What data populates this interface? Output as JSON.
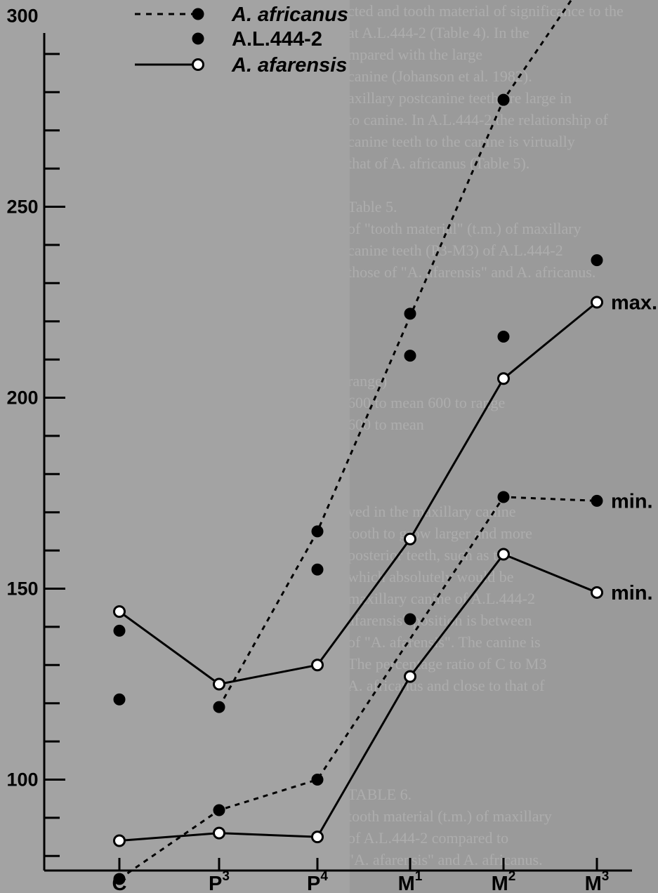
{
  "chart_data": {
    "type": "line",
    "categories": [
      "C",
      "P3",
      "P4",
      "M1",
      "M2",
      "M3"
    ],
    "category_labels": [
      {
        "base": "C",
        "sup": ""
      },
      {
        "base": "P",
        "sup": "3"
      },
      {
        "base": "P",
        "sup": "4"
      },
      {
        "base": "M",
        "sup": "1"
      },
      {
        "base": "M",
        "sup": "2"
      },
      {
        "base": "M",
        "sup": "3"
      }
    ],
    "y_ticks": [
      100,
      150,
      200,
      250,
      300
    ],
    "ylim": [
      68,
      318
    ],
    "grid": false,
    "legend": {
      "position": "top-left",
      "entries": [
        {
          "label": "A. africanus",
          "style": "dashed",
          "marker": "filled",
          "italic": true
        },
        {
          "label": "A.L.444-2",
          "style": "none",
          "marker": "filled",
          "italic": false
        },
        {
          "label": "A. afarensis",
          "style": "solid",
          "marker": "open",
          "italic": true
        }
      ]
    },
    "series": [
      {
        "role": "africanus-max",
        "style": "dashed",
        "marker": "filled",
        "values": [
          null,
          119,
          165,
          null,
          278,
          314
        ]
      },
      {
        "role": "africanus-min",
        "style": "dashed",
        "marker": "filled",
        "values": [
          74,
          92,
          100,
          null,
          174,
          173
        ]
      },
      {
        "role": "afarensis-max",
        "style": "solid",
        "marker": "open",
        "values": [
          144,
          125,
          130,
          163,
          205,
          225
        ]
      },
      {
        "role": "afarensis-min",
        "style": "solid",
        "marker": "open",
        "values": [
          84,
          86,
          85,
          127,
          159,
          149
        ]
      },
      {
        "role": "al444-2",
        "style": "none",
        "marker": "filled",
        "values": [
          139,
          null,
          155,
          142,
          216,
          236
        ]
      }
    ],
    "extra_points": [
      {
        "category": "C",
        "value": 121
      },
      {
        "category": "M1",
        "value": 222
      },
      {
        "category": "M1",
        "value": 211
      }
    ],
    "annotations": [
      {
        "text": "max.",
        "series": "africanus-max"
      },
      {
        "text": "max.",
        "series": "afarensis-max"
      },
      {
        "text": "min.",
        "series": "africanus-min"
      },
      {
        "text": "min.",
        "series": "afarensis-min"
      }
    ]
  },
  "background_text": [
    "cted and tooth material of significance to the",
    "at A.L.444-2 (Table 4). In the",
    "mpared with the large",
    "canine (Johanson et al. 1982).",
    "axillary postcanine teeth are large in",
    "to canine. In A.L.444-2 the relationship of",
    "canine teeth to the canine is virtually",
    "that of A. africanus (Table 5).",
    "",
    "Table 5.",
    "of \"tooth material\" (t.m.) of maxillary",
    "canine teeth (P3-M3) of A.L.444-2",
    "those of \"A. afarensis\" and A. africanus.",
    "",
    "",
    "",
    "",
    "range)",
    "600 to mean  600 to range",
    "600 to mean",
    "",
    "",
    "",
    "ved in the maxillary canine",
    "tooth to grow larger and more",
    "posterior teeth, such as the",
    "which absolutely would be",
    "maxillary canine of A.L.444-2",
    "afarensis\" position is between",
    "of \"A. afarensis\". The canine is",
    "The percentage ratio of C to M3",
    "A. africanus and close to that of",
    "",
    "",
    "",
    "",
    "TABLE 6.",
    "tooth material (t.m.) of maxillary",
    "of A.L.444-2 compared to",
    "\"A. afarensis\" and A. africanus."
  ]
}
